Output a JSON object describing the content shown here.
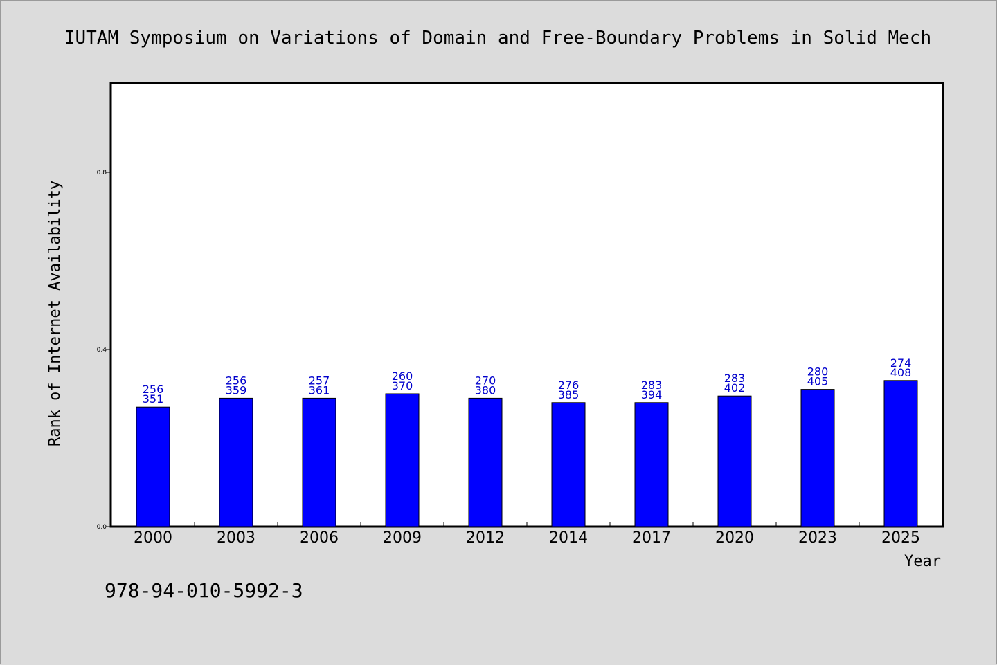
{
  "chart_data": {
    "type": "bar",
    "title": "IUTAM Symposium on Variations of Domain and Free-Boundary Problems in Solid Mech",
    "xlabel": "Year",
    "ylabel": "Rank of Internet Availability",
    "ylim": [
      0,
      1
    ],
    "yticks": [
      "0.0",
      "0.4",
      "0.8"
    ],
    "yticks_values": [
      0.0,
      0.4,
      0.8
    ],
    "grid": false,
    "categories": [
      "2000",
      "2003",
      "2006",
      "2009",
      "2012",
      "2014",
      "2017",
      "2020",
      "2023",
      "2025"
    ],
    "values": [
      0.27,
      0.29,
      0.29,
      0.3,
      0.29,
      0.28,
      0.28,
      0.295,
      0.31,
      0.33
    ],
    "label_top": [
      "256",
      "256",
      "257",
      "260",
      "270",
      "276",
      "283",
      "283",
      "280",
      "274"
    ],
    "label_bottom": [
      "351",
      "359",
      "361",
      "370",
      "380",
      "385",
      "394",
      "402",
      "405",
      "408"
    ],
    "bar_color": "#0000ff",
    "label_color": "#0000cc",
    "isbn": "978-94-010-5992-3"
  }
}
